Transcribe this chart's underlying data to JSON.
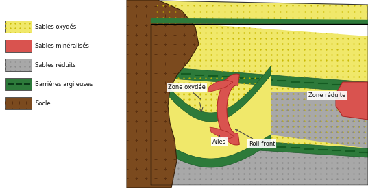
{
  "bg_color": "#FFFFFF",
  "yellow_color": "#F0E86A",
  "red_color": "#D9534F",
  "gray_color": "#A8A8A8",
  "green_color": "#2D7A3A",
  "brown_color": "#7B4A1E",
  "dark_brown": "#5A3010",
  "legend_items": [
    {
      "label": "Sables oxydés",
      "color": "#F0E86A"
    },
    {
      "label": "Sables minéralisés",
      "color": "#D9534F"
    },
    {
      "label": "Sables réduits",
      "color": "#A8A8A8"
    },
    {
      "label": "Barrières argileuses",
      "color": "#2D7A3A"
    },
    {
      "label": "Socle",
      "color": "#7B4A1E"
    }
  ]
}
